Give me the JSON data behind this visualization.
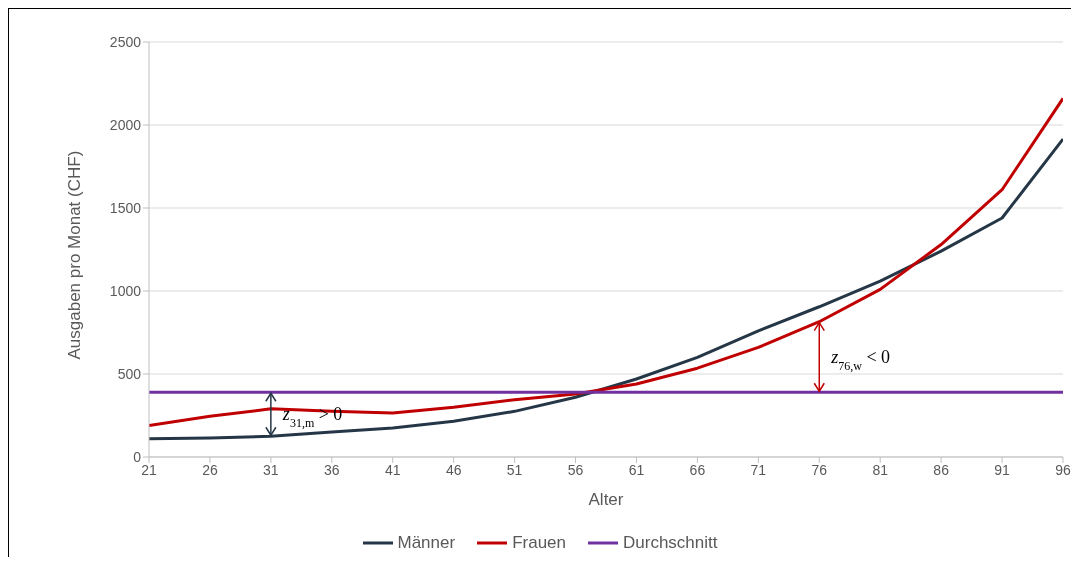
{
  "chart_data": {
    "type": "line",
    "xlabel": "Alter",
    "ylabel": "Ausgaben pro Monat (CHF)",
    "x": [
      21,
      26,
      31,
      36,
      41,
      46,
      51,
      56,
      61,
      66,
      71,
      76,
      81,
      86,
      91,
      96
    ],
    "series": [
      {
        "name": "Männer",
        "color": "#253746",
        "values": [
          110,
          115,
          125,
          150,
          175,
          215,
          275,
          360,
          470,
          600,
          760,
          905,
          1060,
          1240,
          1440,
          1915
        ]
      },
      {
        "name": "Frauen",
        "color": "#c00000",
        "values": [
          190,
          245,
          290,
          275,
          265,
          300,
          345,
          380,
          440,
          535,
          660,
          815,
          1010,
          1280,
          1610,
          2160
        ]
      },
      {
        "name": "Durchschnitt",
        "color": "#7030a0",
        "values": [
          390,
          390,
          390,
          390,
          390,
          390,
          390,
          390,
          390,
          390,
          390,
          390,
          390,
          390,
          390,
          390
        ]
      }
    ],
    "xlim": [
      21,
      96
    ],
    "xticks": [
      21,
      26,
      31,
      36,
      41,
      46,
      51,
      56,
      61,
      66,
      71,
      76,
      81,
      86,
      91,
      96
    ],
    "ylim": [
      0,
      2500
    ],
    "yticks": [
      0,
      500,
      1000,
      1500,
      2000,
      2500
    ],
    "grid": "y",
    "legend": "bottom",
    "marker": "none",
    "line_style": "solid",
    "annotations": [
      {
        "text": "z$_{31,m}$ > 0",
        "x": 31,
        "y": 125
      },
      {
        "text": "z$_{76,w}$ < 0",
        "x": 76,
        "y": 815
      }
    ]
  }
}
